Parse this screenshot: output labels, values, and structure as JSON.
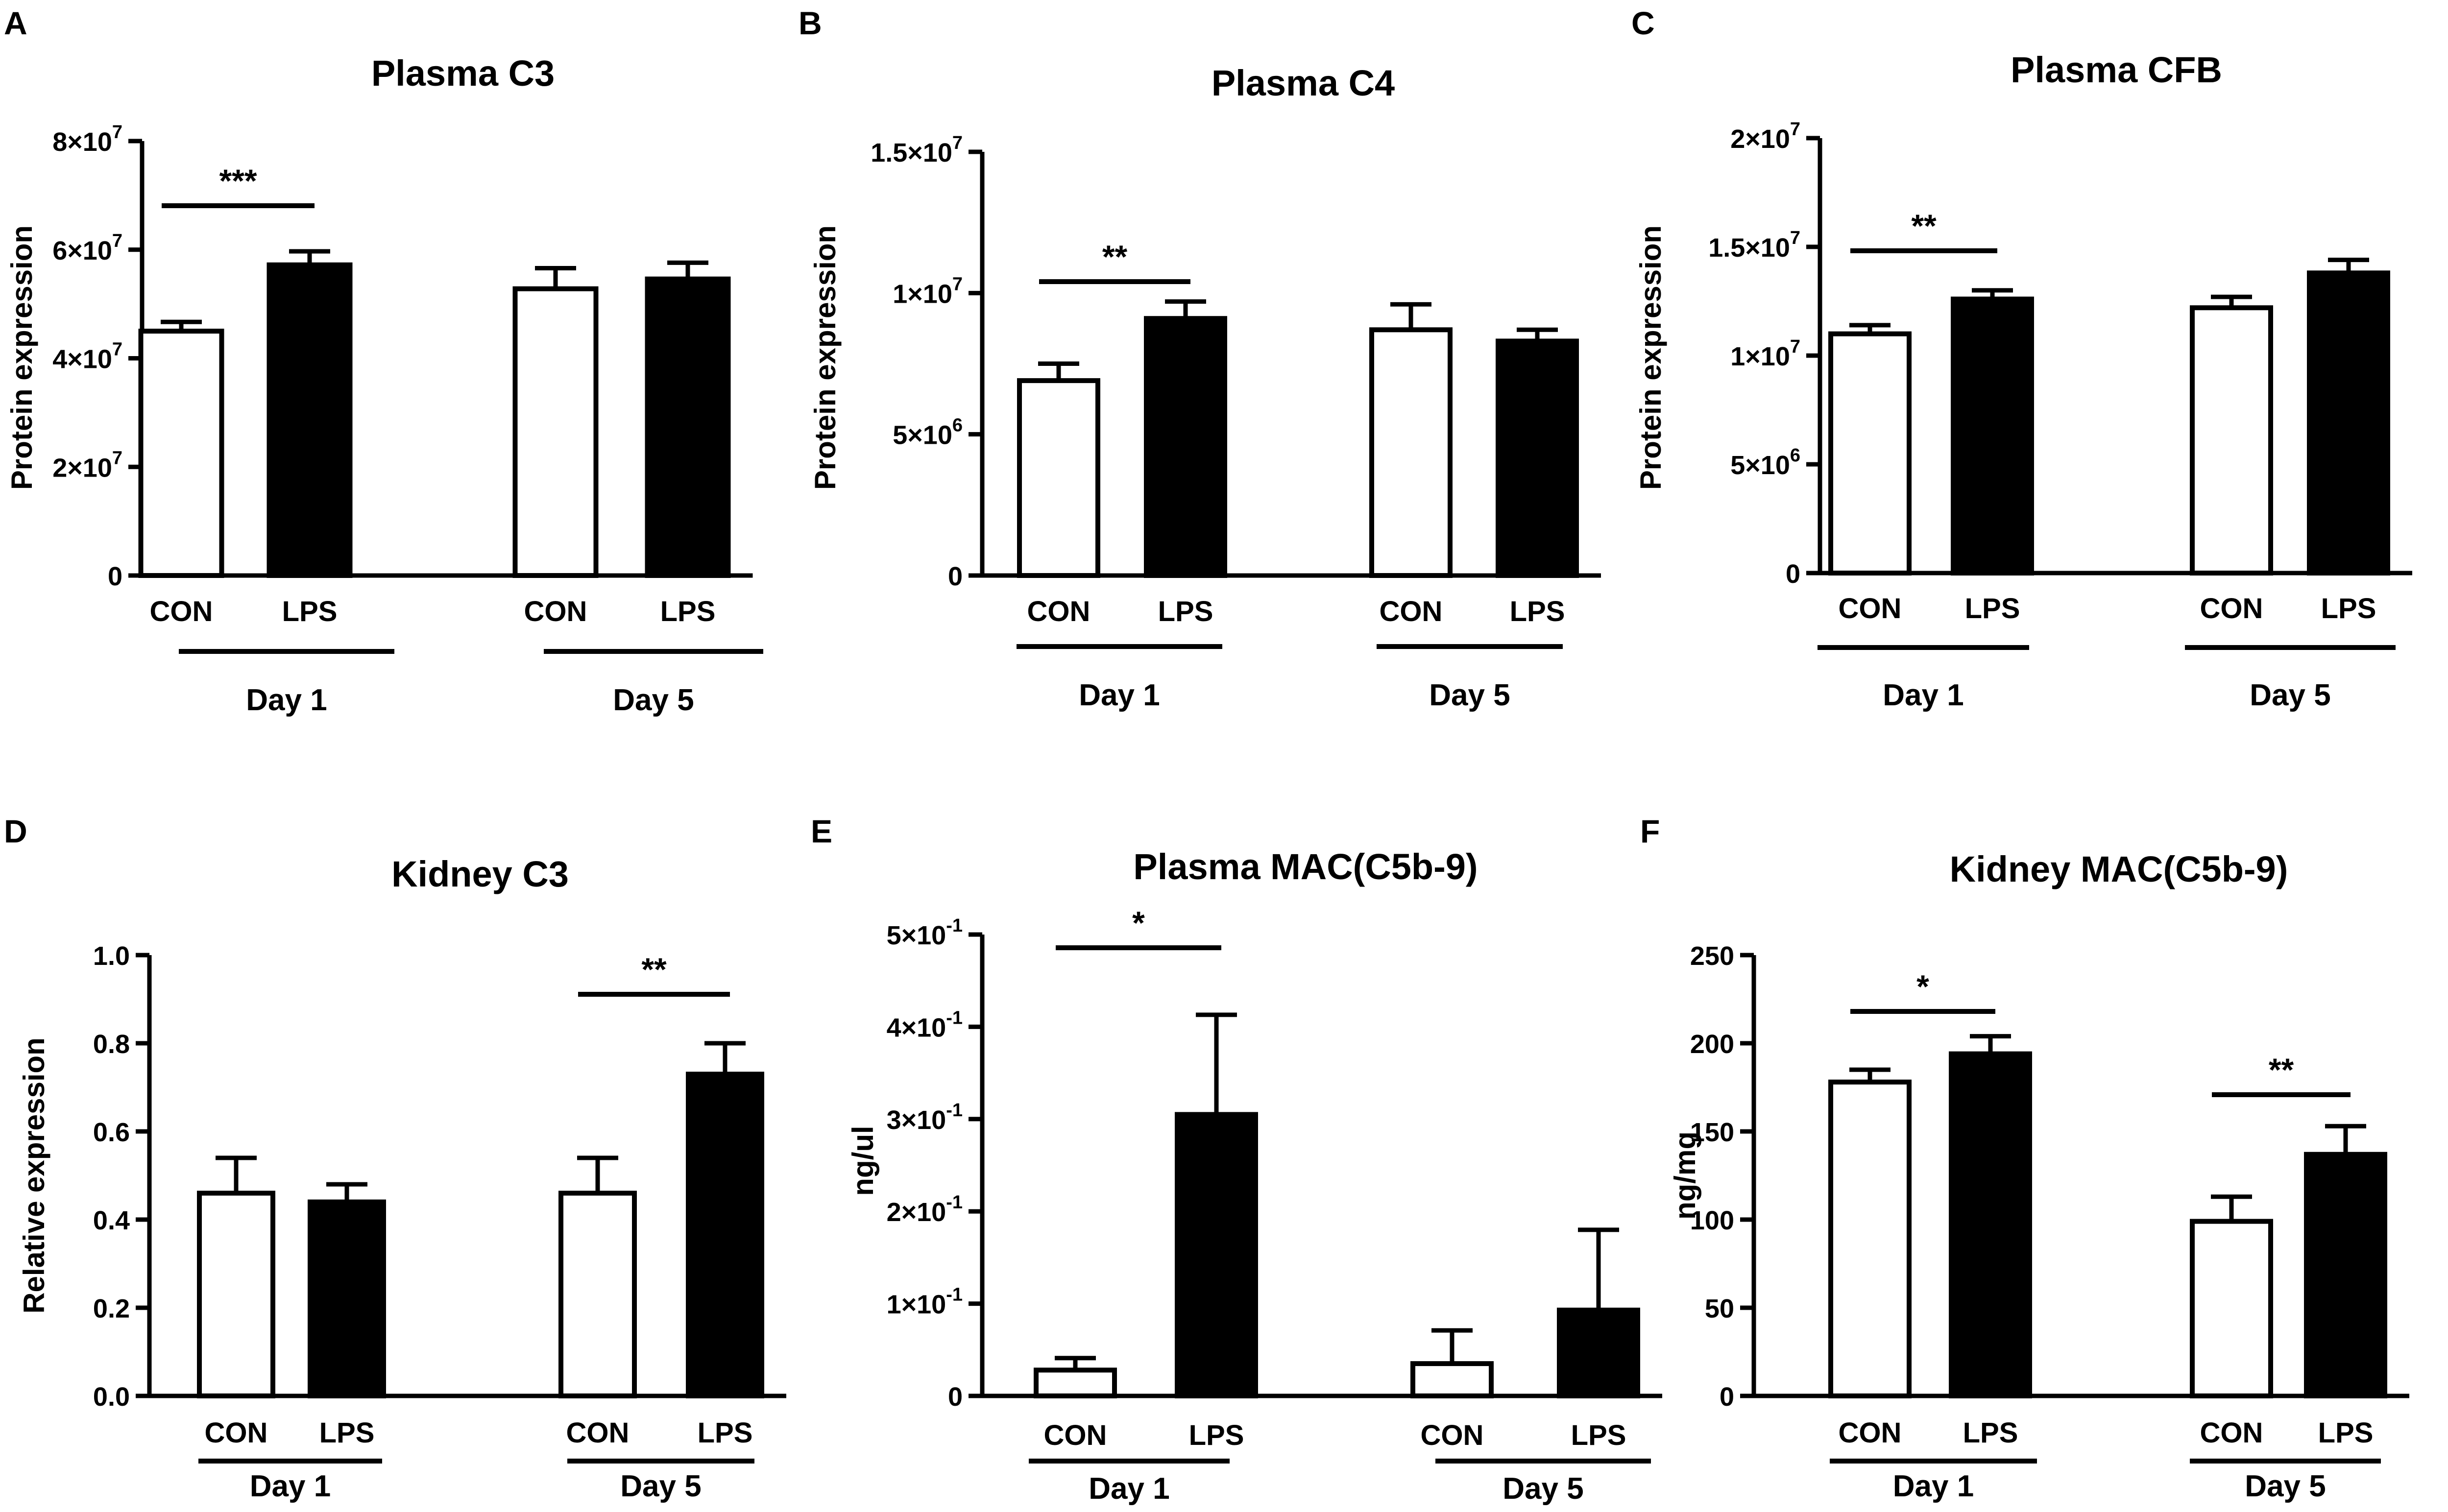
{
  "chart_data": [
    {
      "panel": "A",
      "type": "bar",
      "title": "Plasma C3",
      "ylabel": "Protein expression",
      "ylim": [
        0,
        80000000
      ],
      "yticks": [
        {
          "value": 0,
          "label": "0"
        },
        {
          "value": 20000000,
          "label": "2×10",
          "exp": "7"
        },
        {
          "value": 40000000,
          "label": "4×10",
          "exp": "7"
        },
        {
          "value": 60000000,
          "label": "6×10",
          "exp": "7"
        },
        {
          "value": 80000000,
          "label": "8×10",
          "exp": "7"
        }
      ],
      "categories": [
        "CON",
        "LPS",
        "CON",
        "LPS"
      ],
      "groups": [
        "Day 1",
        "Day 5"
      ],
      "values": [
        45000000,
        57200000,
        52800000,
        54600000
      ],
      "errors": [
        1700000,
        2500000,
        3800000,
        3000000
      ],
      "significance": [
        {
          "from": 0,
          "to": 1,
          "label": "***"
        }
      ]
    },
    {
      "panel": "B",
      "type": "bar",
      "title": "Plasma C4",
      "ylabel": "Protein expression",
      "ylim": [
        0,
        15000000
      ],
      "yticks": [
        {
          "value": 0,
          "label": "0"
        },
        {
          "value": 5000000,
          "label": "5×10",
          "exp": "6"
        },
        {
          "value": 10000000,
          "label": "1×10",
          "exp": "7"
        },
        {
          "value": 15000000,
          "label": "1.5×10",
          "exp": "7"
        }
      ],
      "categories": [
        "CON",
        "LPS",
        "CON",
        "LPS"
      ],
      "groups": [
        "Day 1",
        "Day 5"
      ],
      "values": [
        6900000,
        9100000,
        8700000,
        8300000
      ],
      "errors": [
        600000,
        600000,
        900000,
        400000
      ],
      "significance": [
        {
          "from": 0,
          "to": 1,
          "label": "**"
        }
      ]
    },
    {
      "panel": "C",
      "type": "bar",
      "title": "Plasma CFB",
      "ylabel": "Protein expression",
      "ylim": [
        0,
        20000000
      ],
      "yticks": [
        {
          "value": 0,
          "label": "0"
        },
        {
          "value": 5000000,
          "label": "5×10",
          "exp": "6"
        },
        {
          "value": 10000000,
          "label": "1×10",
          "exp": "7"
        },
        {
          "value": 15000000,
          "label": "1.5×10",
          "exp": "7"
        },
        {
          "value": 20000000,
          "label": "2×10",
          "exp": "7"
        }
      ],
      "categories": [
        "CON",
        "LPS",
        "CON",
        "LPS"
      ],
      "groups": [
        "Day 1",
        "Day 5"
      ],
      "values": [
        11000000,
        12600000,
        12200000,
        13800000
      ],
      "errors": [
        400000,
        400000,
        500000,
        600000
      ],
      "significance": [
        {
          "from": 0,
          "to": 1,
          "label": "**"
        }
      ]
    },
    {
      "panel": "D",
      "type": "bar",
      "title": "Kidney C3",
      "ylabel": "Relative expression",
      "ylim": [
        0,
        1.0
      ],
      "yticks": [
        {
          "value": 0,
          "label": "0.0"
        },
        {
          "value": 0.2,
          "label": "0.2"
        },
        {
          "value": 0.4,
          "label": "0.4"
        },
        {
          "value": 0.6,
          "label": "0.6"
        },
        {
          "value": 0.8,
          "label": "0.8"
        },
        {
          "value": 1.0,
          "label": "1.0"
        }
      ],
      "categories": [
        "CON",
        "LPS",
        "CON",
        "LPS"
      ],
      "groups": [
        "Day 1",
        "Day 5"
      ],
      "values": [
        0.46,
        0.44,
        0.46,
        0.73
      ],
      "errors": [
        0.08,
        0.04,
        0.08,
        0.07
      ],
      "significance": [
        {
          "from": 2,
          "to": 3,
          "label": "**"
        }
      ]
    },
    {
      "panel": "E",
      "type": "bar",
      "title": "Plasma MAC(C5b-9)",
      "ylabel": "ng/ul",
      "ylim": [
        0,
        0.5
      ],
      "yticks": [
        {
          "value": 0,
          "label": "0"
        },
        {
          "value": 0.1,
          "label": "1×10",
          "exp": "-1"
        },
        {
          "value": 0.2,
          "label": "2×10",
          "exp": "-1"
        },
        {
          "value": 0.3,
          "label": "3×10",
          "exp": "-1"
        },
        {
          "value": 0.4,
          "label": "4×10",
          "exp": "-1"
        },
        {
          "value": 0.5,
          "label": "5×10",
          "exp": "-1"
        }
      ],
      "categories": [
        "CON",
        "LPS",
        "CON",
        "LPS"
      ],
      "groups": [
        "Day 1",
        "Day 5"
      ],
      "values": [
        0.028,
        0.305,
        0.035,
        0.093
      ],
      "errors": [
        0.013,
        0.108,
        0.036,
        0.087
      ],
      "significance": [
        {
          "from": 0,
          "to": 1,
          "label": "*"
        }
      ]
    },
    {
      "panel": "F",
      "type": "bar",
      "title": "Kidney MAC(C5b-9)",
      "ylabel": "ng/mg",
      "ylim": [
        0,
        250
      ],
      "yticks": [
        {
          "value": 0,
          "label": "0"
        },
        {
          "value": 50,
          "label": "50"
        },
        {
          "value": 100,
          "label": "100"
        },
        {
          "value": 150,
          "label": "150"
        },
        {
          "value": 200,
          "label": "200"
        },
        {
          "value": 250,
          "label": "250"
        }
      ],
      "categories": [
        "CON",
        "LPS",
        "CON",
        "LPS"
      ],
      "groups": [
        "Day 1",
        "Day 5"
      ],
      "values": [
        178,
        194,
        99,
        137
      ],
      "errors": [
        7,
        10,
        14,
        16
      ],
      "significance": [
        {
          "from": 0,
          "to": 1,
          "label": "*"
        },
        {
          "from": 2,
          "to": 3,
          "label": "**"
        }
      ]
    }
  ]
}
